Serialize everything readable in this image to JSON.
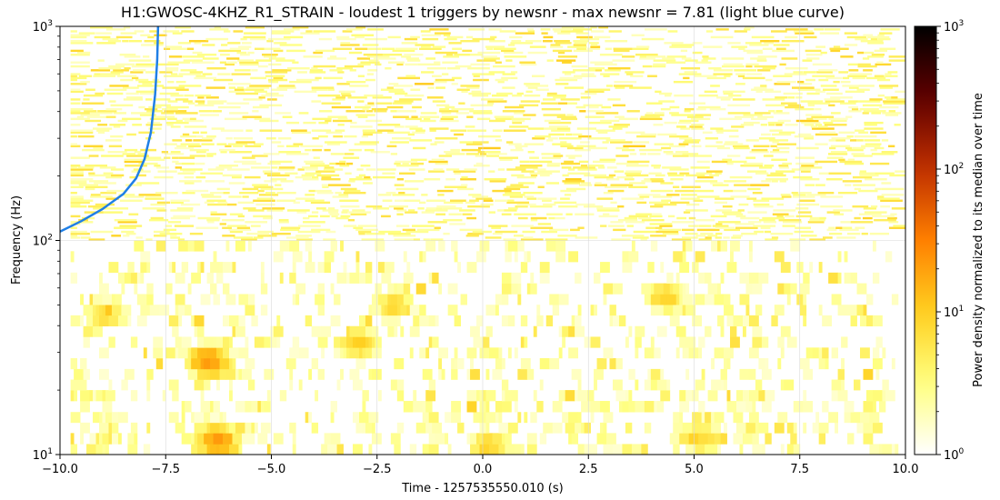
{
  "chart_data": {
    "type": "heatmap",
    "title": "H1:GWOSC-4KHZ_R1_STRAIN - loudest 1 triggers by newsnr - max newsnr = 7.81 (light blue curve)",
    "xlabel": "Time - 1257535550.010 (s)",
    "ylabel": "Frequency (Hz)",
    "xlim": [
      -10,
      10
    ],
    "ylim": [
      10,
      1000
    ],
    "yscale": "log",
    "x_ticks": [
      -10,
      -7.5,
      -5,
      -2.5,
      0,
      2.5,
      5,
      7.5,
      10
    ],
    "x_tick_labels": [
      "−10.0",
      "−7.5",
      "−5.0",
      "−2.5",
      "0.0",
      "2.5",
      "5.0",
      "7.5",
      "10.0"
    ],
    "y_ticks": [
      10,
      100,
      1000
    ],
    "y_tick_labels": [
      [
        "10",
        "1"
      ],
      [
        "10",
        "2"
      ],
      [
        "10",
        "3"
      ]
    ],
    "grid": true,
    "colorbar": {
      "label": "Power density normalized to its median over time",
      "scale": "log",
      "range": [
        1,
        1000
      ],
      "ticks": [
        1,
        10,
        100,
        1000
      ],
      "tick_labels": [
        [
          "10",
          "0"
        ],
        [
          "10",
          "1"
        ],
        [
          "10",
          "2"
        ],
        [
          "10",
          "3"
        ]
      ],
      "colormap": "afmhot_r",
      "colors": [
        "#ffffff",
        "#ffff80",
        "#ffd020",
        "#ff8000",
        "#c03000",
        "#600000",
        "#000000"
      ]
    },
    "trigger_curve": {
      "color": "#1f7fe6",
      "points": [
        [
          -10.0,
          110
        ],
        [
          -9.5,
          123
        ],
        [
          -9.0,
          140
        ],
        [
          -8.5,
          165
        ],
        [
          -8.2,
          195
        ],
        [
          -8.0,
          240
        ],
        [
          -7.85,
          320
        ],
        [
          -7.75,
          480
        ],
        [
          -7.7,
          700
        ],
        [
          -7.68,
          1000
        ]
      ]
    },
    "hotspots": [
      {
        "t": -6.55,
        "f": 28,
        "level": 15
      },
      {
        "t": -6.3,
        "f": 12,
        "level": 12
      },
      {
        "t": -2.9,
        "f": 33,
        "level": 9
      },
      {
        "t": -2.1,
        "f": 50,
        "level": 8
      },
      {
        "t": 4.3,
        "f": 55,
        "level": 8
      },
      {
        "t": -8.9,
        "f": 45,
        "level": 7
      },
      {
        "t": -6.4,
        "f": 26,
        "level": 9
      },
      {
        "t": -6.2,
        "f": 11,
        "level": 10
      },
      {
        "t": 0.2,
        "f": 11,
        "level": 7
      },
      {
        "t": 5.2,
        "f": 12,
        "level": 6
      }
    ]
  }
}
